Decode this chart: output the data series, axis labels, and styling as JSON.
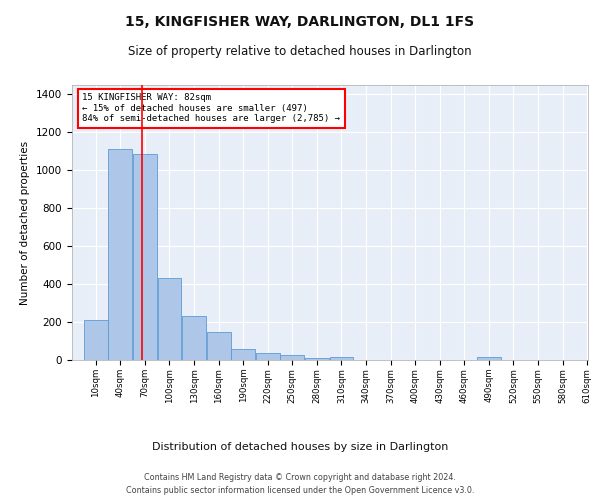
{
  "title": "15, KINGFISHER WAY, DARLINGTON, DL1 1FS",
  "subtitle": "Size of property relative to detached houses in Darlington",
  "xlabel": "Distribution of detached houses by size in Darlington",
  "ylabel": "Number of detached properties",
  "footer1": "Contains HM Land Registry data © Crown copyright and database right 2024.",
  "footer2": "Contains public sector information licensed under the Open Government Licence v3.0.",
  "bar_color": "#aec6e8",
  "bar_edge_color": "#5b9bd5",
  "bg_color": "#e8eef7",
  "grid_color": "#ffffff",
  "red_line_x": 82,
  "annotation_text": "15 KINGFISHER WAY: 82sqm\n← 15% of detached houses are smaller (497)\n84% of semi-detached houses are larger (2,785) →",
  "categories": [
    "10sqm",
    "40sqm",
    "70sqm",
    "100sqm",
    "130sqm",
    "160sqm",
    "190sqm",
    "220sqm",
    "250sqm",
    "280sqm",
    "310sqm",
    "340sqm",
    "370sqm",
    "400sqm",
    "430sqm",
    "460sqm",
    "490sqm",
    "520sqm",
    "550sqm",
    "580sqm",
    "610sqm"
  ],
  "bin_edges": [
    10,
    40,
    70,
    100,
    130,
    160,
    190,
    220,
    250,
    280,
    310,
    340,
    370,
    400,
    430,
    460,
    490,
    520,
    550,
    580,
    610
  ],
  "bar_heights": [
    210,
    1110,
    1085,
    430,
    232,
    148,
    58,
    38,
    25,
    12,
    15,
    0,
    0,
    0,
    0,
    0,
    14,
    0,
    0,
    0,
    0
  ],
  "ylim": [
    0,
    1450
  ],
  "yticks": [
    0,
    200,
    400,
    600,
    800,
    1000,
    1200,
    1400
  ],
  "bin_width": 30
}
